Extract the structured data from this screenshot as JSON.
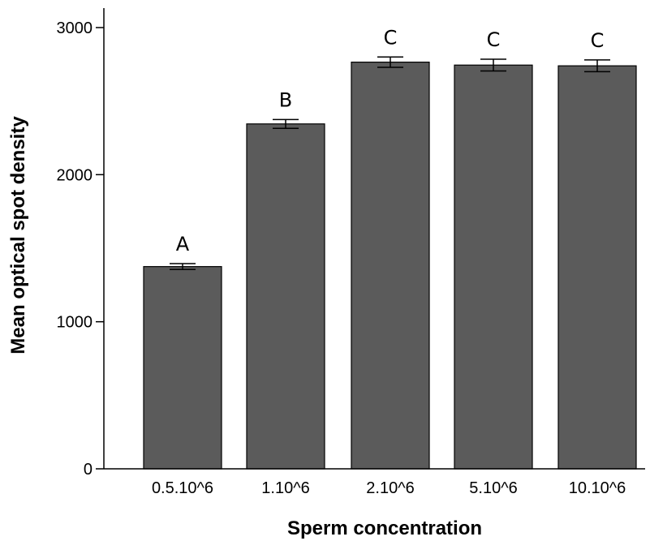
{
  "chart_data": {
    "type": "bar",
    "title": "",
    "xlabel": "Sperm concentration",
    "ylabel": "Mean optical spot density",
    "ylim": [
      0,
      3000
    ],
    "yticks": [
      0,
      1000,
      2000,
      3000
    ],
    "categories": [
      "0.5.10^6",
      "1.10^6",
      "2.10^6",
      "5.10^6",
      "10.10^6"
    ],
    "values": [
      1375,
      2345,
      2765,
      2745,
      2740
    ],
    "errors": [
      20,
      30,
      35,
      40,
      40
    ],
    "group_letters": [
      "A",
      "B",
      "C",
      "C",
      "C"
    ],
    "bar_color": "#5b5b5b",
    "grid": false,
    "legend": "none"
  }
}
